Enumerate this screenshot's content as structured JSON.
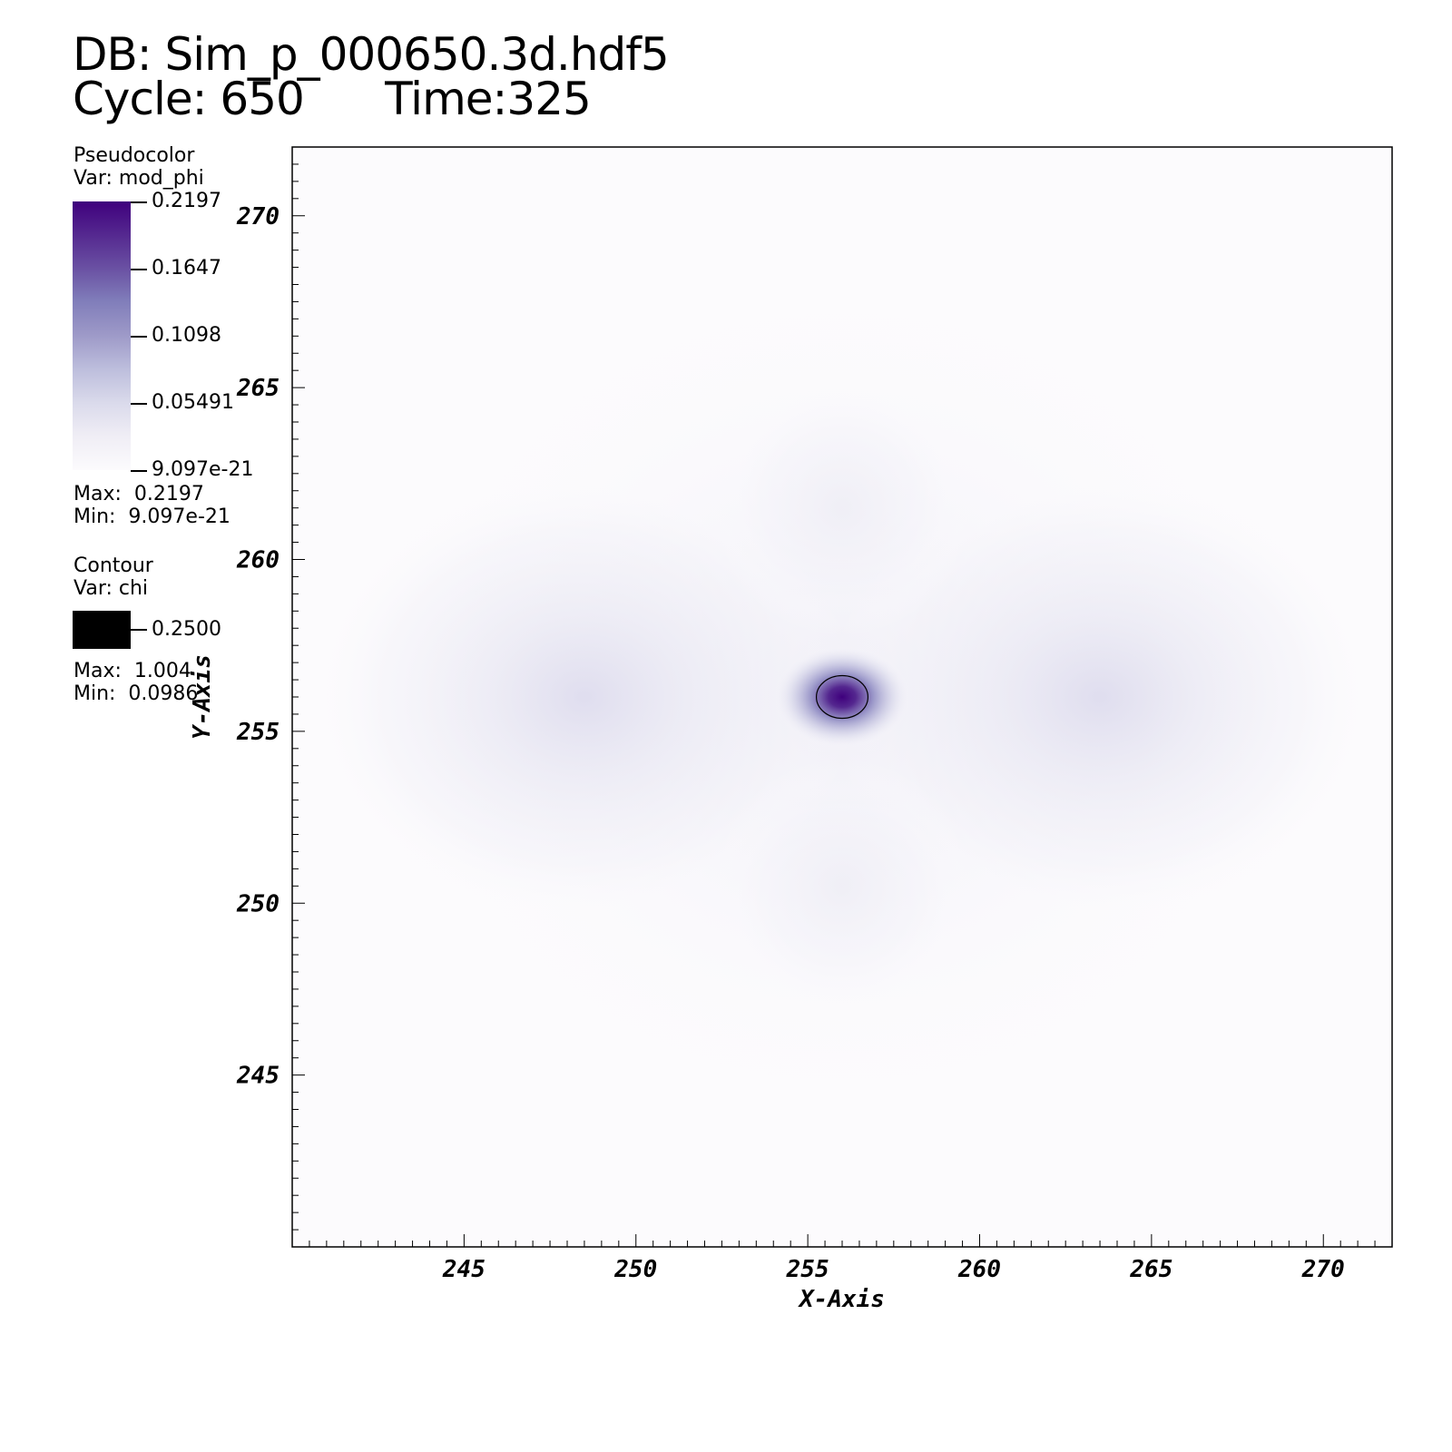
{
  "header": {
    "db_line": "DB: Sim_p_000650.3d.hdf5",
    "cycle_line": "Cycle: 650      Time:325"
  },
  "legend": {
    "pseudocolor": {
      "title": "Pseudocolor",
      "var": "Var: mod_phi",
      "ticks": [
        "0.2197",
        "0.1647",
        "0.1098",
        "0.05491",
        "9.097e-21"
      ],
      "max": "Max:  0.2197",
      "min": "Min:  9.097e-21",
      "colormap": [
        "#3f007d",
        "#54278f",
        "#6a51a3",
        "#807dba",
        "#9e9ac8",
        "#bcbddc",
        "#dadaeb",
        "#efedf5",
        "#fcfbfd"
      ]
    },
    "contour": {
      "title": "Contour",
      "var": "Var: chi",
      "level": "0.2500",
      "max": "Max:  1.004",
      "min": "Min:  0.0986",
      "color": "#000000"
    }
  },
  "chart_data": {
    "type": "heatmap",
    "title": "",
    "xlabel": "X-Axis",
    "ylabel": "Y-Axis",
    "xlim": [
      240,
      272
    ],
    "ylim": [
      240,
      272
    ],
    "xticks": [
      "245",
      "250",
      "255",
      "260",
      "265",
      "270"
    ],
    "yticks": [
      "245",
      "250",
      "255",
      "260",
      "265",
      "270"
    ],
    "grid": false,
    "peak": {
      "x": 256,
      "y": 256,
      "value": 0.2197
    },
    "contour": {
      "variable": "chi",
      "level": 0.25,
      "center": [
        256,
        256
      ],
      "semi_axes": [
        0.75,
        0.62
      ]
    }
  }
}
